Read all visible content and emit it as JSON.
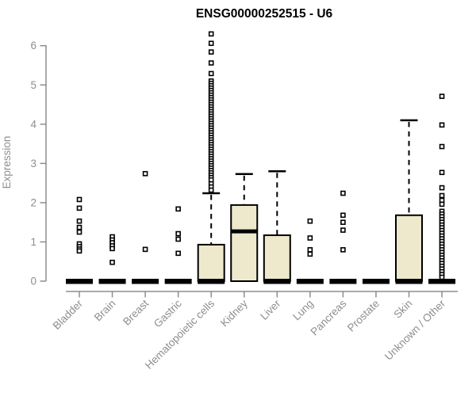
{
  "chart_data": {
    "type": "boxplot",
    "title": "ENSG00000252515 - U6",
    "ylabel": "Expression",
    "ylim": [
      0,
      6.4
    ],
    "yticks": [
      0,
      1,
      2,
      3,
      4,
      5,
      6
    ],
    "grid": false,
    "legend": "none",
    "categories": [
      "Bladder",
      "Brain",
      "Breast",
      "Gastric",
      "Hematopoietic cells",
      "Kidney",
      "Liver",
      "Lung",
      "Pancreas",
      "Prostate",
      "Skin",
      "Unknown / Other"
    ],
    "groups": [
      {
        "label": "Bladder",
        "q1": 0,
        "median": 0,
        "q3": 0,
        "whisker_low": 0,
        "whisker_high": 0,
        "outliers": [
          2.08,
          1.86,
          1.53,
          1.37,
          1.25,
          0.95,
          0.88,
          0.82,
          0.77
        ]
      },
      {
        "label": "Brain",
        "q1": 0,
        "median": 0,
        "q3": 0,
        "whisker_low": 0,
        "whisker_high": 0,
        "outliers": [
          1.13,
          1.05,
          0.98,
          0.9,
          0.83,
          0.48
        ]
      },
      {
        "label": "Breast",
        "q1": 0,
        "median": 0,
        "q3": 0,
        "whisker_low": 0,
        "whisker_high": 0,
        "outliers": [
          2.74,
          0.81
        ]
      },
      {
        "label": "Gastric",
        "q1": 0,
        "median": 0,
        "q3": 0,
        "whisker_low": 0,
        "whisker_high": 0,
        "outliers": [
          1.84,
          1.21,
          1.07,
          0.71
        ]
      },
      {
        "label": "Hematopoietic cells",
        "q1": 0,
        "median": 0,
        "q3": 0.93,
        "whisker_low": 0,
        "whisker_high": 2.24,
        "outliers": [
          6.3,
          6.06,
          5.84,
          5.56,
          5.29,
          5.1,
          5.04,
          4.98,
          4.92,
          4.86,
          4.8,
          4.74,
          4.68,
          4.62,
          4.56,
          4.5,
          4.44,
          4.38,
          4.32,
          4.26,
          4.2,
          4.14,
          4.08,
          4.02,
          3.96,
          3.9,
          3.84,
          3.78,
          3.72,
          3.66,
          3.6,
          3.54,
          3.48,
          3.42,
          3.36,
          3.3,
          3.24,
          3.18,
          3.12,
          3.06,
          3.0,
          2.94,
          2.88,
          2.82,
          2.76,
          2.7,
          2.64,
          2.58,
          2.48,
          2.4,
          2.32
        ]
      },
      {
        "label": "Kidney",
        "q1": 0,
        "median": 1.27,
        "q3": 1.94,
        "whisker_low": 0,
        "whisker_high": 2.73,
        "outliers": []
      },
      {
        "label": "Liver",
        "q1": 0,
        "median": 0,
        "q3": 1.17,
        "whisker_low": 0,
        "whisker_high": 2.8,
        "outliers": []
      },
      {
        "label": "Lung",
        "q1": 0,
        "median": 0,
        "q3": 0,
        "whisker_low": 0,
        "whisker_high": 0,
        "outliers": [
          1.53,
          1.1,
          0.8,
          0.69
        ]
      },
      {
        "label": "Pancreas",
        "q1": 0,
        "median": 0,
        "q3": 0,
        "whisker_low": 0,
        "whisker_high": 0,
        "outliers": [
          2.24,
          1.68,
          1.5,
          1.3,
          0.8
        ]
      },
      {
        "label": "Prostate",
        "q1": 0,
        "median": 0,
        "q3": 0,
        "whisker_low": 0,
        "whisker_high": 0,
        "outliers": []
      },
      {
        "label": "Skin",
        "q1": 0,
        "median": 0,
        "q3": 1.68,
        "whisker_low": 0,
        "whisker_high": 4.1,
        "outliers": []
      },
      {
        "label": "Unknown / Other",
        "q1": 0,
        "median": 0,
        "q3": 0,
        "whisker_low": 0,
        "whisker_high": 0,
        "outliers": [
          4.71,
          3.98,
          3.43,
          2.77,
          2.38,
          2.18,
          2.06,
          1.96,
          1.78,
          1.71,
          1.64,
          1.57,
          1.5,
          1.43,
          1.36,
          1.29,
          1.22,
          1.15,
          1.08,
          1.01,
          0.94,
          0.87,
          0.8,
          0.73,
          0.66,
          0.59,
          0.52,
          0.45,
          0.38,
          0.31,
          0.24,
          0.17,
          0.1
        ]
      }
    ],
    "colors": {
      "box_fill": "#EEE8CD",
      "box_stroke": "#000000",
      "median": "#000000",
      "outlier_stroke": "#000000",
      "outlier_fill": "#ffffff",
      "axis": "#8e8e8e",
      "axis_text": "#8e8e8e",
      "title": "#000000",
      "background": "#ffffff"
    }
  }
}
